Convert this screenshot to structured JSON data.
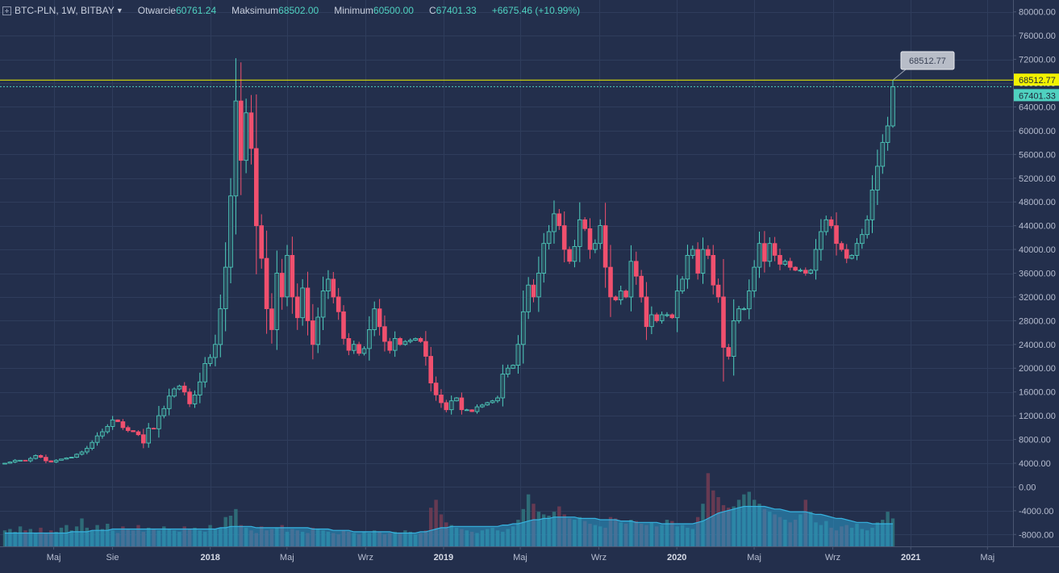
{
  "header": {
    "symbol": "BTC-PLN, 1W, BITBAY",
    "open_label": "Otwarcie",
    "open_value": "60761.24",
    "high_label": "Maksimum",
    "high_value": "68502.00",
    "low_label": "Minimum",
    "low_value": "60500.00",
    "close_label": "C",
    "close_value": "67401.33",
    "change": "+6675.46 (+10.99%)"
  },
  "colors": {
    "background": "#232f4c",
    "up": "#4fd1c0",
    "down": "#f0506e",
    "volume_ma": "#2b9fd0",
    "high_line": "#f2f200"
  },
  "chart_data": {
    "type": "candlestick",
    "interval": "1W",
    "y_axis": {
      "ticks": [
        "80000.00",
        "76000.00",
        "72000.00",
        "68000.00",
        "64000.00",
        "60000.00",
        "56000.00",
        "52000.00",
        "48000.00",
        "44000.00",
        "40000.00",
        "36000.00",
        "32000.00",
        "28000.00",
        "24000.00",
        "20000.00",
        "16000.00",
        "12000.00",
        "8000.00",
        "4000.00",
        "0.00",
        "-4000.00",
        "-8000.00"
      ],
      "range": [
        -10000,
        82000
      ]
    },
    "x_axis": {
      "ticks": [
        {
          "label": "Maj",
          "date": "2017-05-01",
          "bold": false
        },
        {
          "label": "Sie",
          "date": "2017-08-01",
          "bold": false
        },
        {
          "label": "2018",
          "date": "2018-01-01",
          "bold": true
        },
        {
          "label": "Maj",
          "date": "2018-05-01",
          "bold": false
        },
        {
          "label": "Wrz",
          "date": "2018-09-01",
          "bold": false
        },
        {
          "label": "2019",
          "date": "2019-01-01",
          "bold": true
        },
        {
          "label": "Maj",
          "date": "2019-05-01",
          "bold": false
        },
        {
          "label": "Wrz",
          "date": "2019-09-01",
          "bold": false
        },
        {
          "label": "2020",
          "date": "2020-01-01",
          "bold": true
        },
        {
          "label": "Maj",
          "date": "2020-05-01",
          "bold": false
        },
        {
          "label": "Wrz",
          "date": "2020-09-01",
          "bold": false
        },
        {
          "label": "2021",
          "date": "2021-01-01",
          "bold": true
        },
        {
          "label": "Maj",
          "date": "2021-05-01",
          "bold": false
        }
      ],
      "range": [
        "2017-02-06",
        "2021-06-10"
      ]
    },
    "series": [
      {
        "name": "price",
        "closes": [
          4000,
          4200,
          4500,
          4500,
          4400,
          4800,
          5300,
          5000,
          4400,
          4200,
          4500,
          4700,
          4900,
          5000,
          5500,
          5900,
          6500,
          7500,
          8600,
          9300,
          10200,
          11300,
          11000,
          10000,
          9500,
          9300,
          8800,
          7400,
          9900,
          9800,
          12000,
          13200,
          15300,
          16500,
          17000,
          16000,
          14000,
          15500,
          17700,
          20800,
          21800,
          24000,
          30000,
          37000,
          49000,
          65000,
          55000,
          63000,
          57000,
          44000,
          38500,
          30000,
          26500,
          36000,
          32000,
          39000,
          32000,
          28500,
          33500,
          28000,
          24000,
          28600,
          33000,
          35000,
          32000,
          29500,
          25000,
          23000,
          24000,
          22500,
          23300,
          26500,
          30000,
          27000,
          24500,
          23000,
          25000,
          24000,
          24500,
          24700,
          25000,
          24500,
          22000,
          17500,
          15500,
          14200,
          13000,
          14500,
          15000,
          13000,
          13000,
          12700,
          13500,
          13800,
          14200,
          14500,
          15000,
          19000,
          20000,
          20500,
          24000,
          29500,
          34000,
          32000,
          36000,
          41000,
          43000,
          46000,
          44000,
          40000,
          38000,
          40500,
          45000,
          43500,
          40000,
          41000,
          44000,
          37000,
          32000,
          31500,
          33000,
          32000,
          38000,
          35500,
          32000,
          27000,
          29000,
          28000,
          29000,
          29000,
          28500,
          33000,
          35000,
          39000,
          40000,
          36000,
          40000,
          39000,
          34000,
          32000,
          23500,
          22000,
          28000,
          30000,
          30000,
          33000,
          37000,
          41000,
          38000,
          41000,
          39000,
          37500,
          38000,
          37000,
          36500,
          36500,
          36000,
          36500,
          40000,
          43000,
          45000,
          44000,
          41000,
          40000,
          38500,
          39000,
          41000,
          42500,
          45000,
          50000,
          54000,
          58000,
          60800,
          67401
        ],
        "summary": {
          "open": 60761.24,
          "high": 68502.0,
          "low": 60500.0,
          "close": 67401.33,
          "change": 6675.46,
          "change_pct": 10.99
        }
      }
    ],
    "volume": {
      "bars": [
        12,
        13,
        11,
        15,
        12,
        13,
        10,
        14,
        10,
        12,
        11,
        14,
        16,
        12,
        15,
        21,
        14,
        12,
        16,
        13,
        17,
        12,
        10,
        15,
        13,
        12,
        16,
        11,
        14,
        13,
        12,
        15,
        13,
        12,
        11,
        15,
        13,
        14,
        12,
        11,
        16,
        13,
        14,
        22,
        23,
        28,
        16,
        14,
        12,
        10,
        15,
        12,
        13,
        14,
        16,
        11,
        13,
        12,
        11,
        10,
        14,
        13,
        12,
        11,
        10,
        9,
        12,
        11,
        10,
        9,
        11,
        10,
        12,
        11,
        9,
        10,
        11,
        10,
        12,
        11,
        9,
        10,
        12,
        29,
        35,
        24,
        18,
        16,
        14,
        13,
        12,
        11,
        10,
        12,
        13,
        14,
        12,
        11,
        13,
        15,
        20,
        28,
        39,
        32,
        26,
        24,
        23,
        26,
        30,
        24,
        21,
        20,
        22,
        19,
        17,
        16,
        15,
        14,
        22,
        21,
        18,
        17,
        20,
        19,
        17,
        16,
        18,
        15,
        16,
        20,
        19,
        15,
        16,
        14,
        13,
        22,
        32,
        55,
        42,
        37,
        31,
        29,
        30,
        35,
        39,
        41,
        35,
        32,
        28,
        26,
        24,
        22,
        20,
        18,
        20,
        24,
        35,
        26,
        18,
        16,
        19,
        14,
        12,
        15,
        16,
        14,
        17,
        13,
        12,
        14,
        18,
        20,
        26,
        21
      ],
      "ma": [
        10,
        10,
        10,
        10,
        10,
        10,
        10,
        10,
        10,
        10,
        10,
        10,
        10,
        11,
        11,
        11,
        11,
        12,
        12,
        12,
        12,
        13,
        13,
        13,
        13,
        13,
        13,
        13,
        13,
        13,
        13,
        13,
        13,
        13,
        13,
        13,
        13,
        13,
        13,
        13,
        13,
        13,
        14,
        14,
        15,
        15,
        15,
        15,
        15,
        14,
        14,
        14,
        14,
        14,
        14,
        14,
        14,
        14,
        14,
        14,
        13,
        13,
        13,
        13,
        12,
        12,
        12,
        12,
        11,
        11,
        11,
        11,
        11,
        11,
        11,
        11,
        10,
        10,
        10,
        10,
        10,
        11,
        11,
        12,
        13,
        14,
        14,
        15,
        15,
        15,
        15,
        15,
        15,
        15,
        15,
        15,
        15,
        16,
        16,
        17,
        17,
        18,
        19,
        20,
        20,
        21,
        21,
        22,
        22,
        22,
        22,
        22,
        21,
        21,
        21,
        21,
        20,
        20,
        20,
        20,
        19,
        19,
        19,
        18,
        18,
        18,
        18,
        18,
        17,
        17,
        17,
        17,
        17,
        17,
        17,
        18,
        19,
        21,
        23,
        25,
        26,
        27,
        28,
        29,
        30,
        30,
        30,
        30,
        30,
        29,
        28,
        28,
        27,
        26,
        26,
        26,
        26,
        25,
        24,
        24,
        23,
        22,
        21,
        21,
        20,
        19,
        18,
        18,
        18,
        17,
        17,
        17,
        17,
        17
      ]
    },
    "price_labels": {
      "high": "68512.77",
      "close": "67401.33",
      "callout": "68512.77"
    },
    "grid": true
  }
}
